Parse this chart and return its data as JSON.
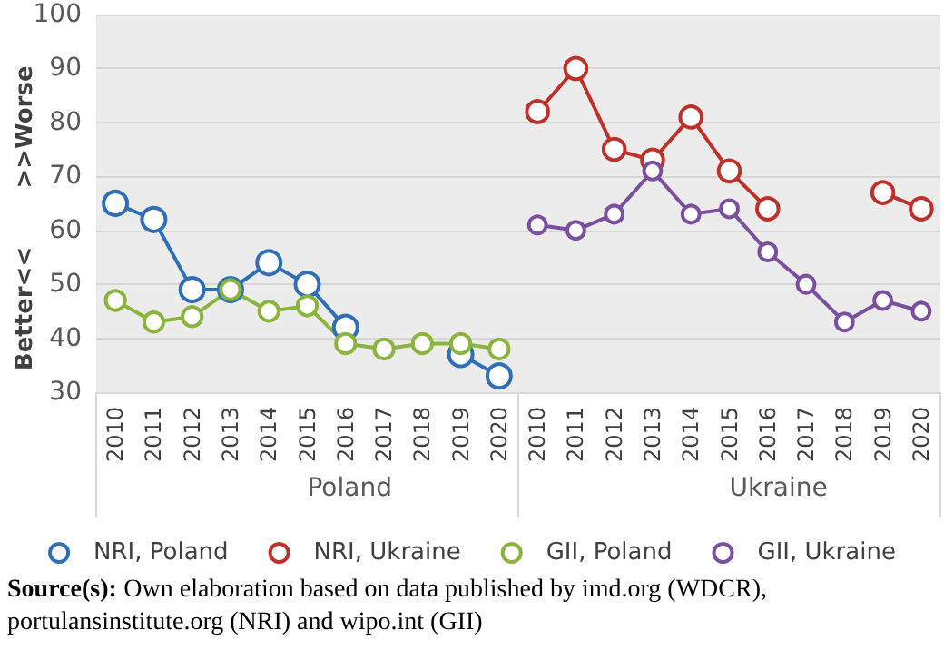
{
  "chart_data": {
    "type": "line",
    "ylabel": "Better<< >>Worse",
    "categories": [
      "2010",
      "2011",
      "2012",
      "2013",
      "2014",
      "2015",
      "2016",
      "2017",
      "2018",
      "2019",
      "2020",
      "2010",
      "2011",
      "2012",
      "2013",
      "2014",
      "2015",
      "2016",
      "2017",
      "2018",
      "2019",
      "2020"
    ],
    "series": [
      {
        "name": "NRI, Poland",
        "color": "#2e6fb7",
        "values": [
          65,
          62,
          49,
          49,
          54,
          50,
          42,
          null,
          null,
          37,
          33,
          null,
          null,
          null,
          null,
          null,
          null,
          null,
          null,
          null,
          null,
          null
        ]
      },
      {
        "name": "NRI, Ukraine",
        "color": "#c0302a",
        "values": [
          null,
          null,
          null,
          null,
          null,
          null,
          null,
          null,
          null,
          null,
          null,
          82,
          90,
          75,
          73,
          81,
          71,
          64,
          null,
          null,
          67,
          64
        ]
      },
      {
        "name": "GII, Poland",
        "color": "#8ab43c",
        "values": [
          47,
          43,
          44,
          49,
          45,
          46,
          39,
          38,
          39,
          39,
          38,
          null,
          null,
          null,
          null,
          null,
          null,
          null,
          null,
          null,
          null,
          null
        ]
      },
      {
        "name": "GII, Ukraine",
        "color": "#7a4fa0",
        "values": [
          null,
          null,
          null,
          null,
          null,
          null,
          null,
          null,
          null,
          null,
          null,
          61,
          60,
          63,
          71,
          63,
          64,
          56,
          50,
          43,
          47,
          45
        ]
      }
    ],
    "ylim": [
      30,
      100
    ],
    "yticks": [
      30,
      40,
      50,
      60,
      70,
      80,
      90,
      100
    ],
    "grid": "y",
    "legend": "bottom",
    "marker": "circle",
    "line_style": "solid",
    "annotations": [
      "Poland",
      "Ukraine",
      "Source(s): Own elaboration based on data published by imd.org (WDCR), portulansinstitute.org (NRI) and wipo.int (GII)"
    ]
  }
}
